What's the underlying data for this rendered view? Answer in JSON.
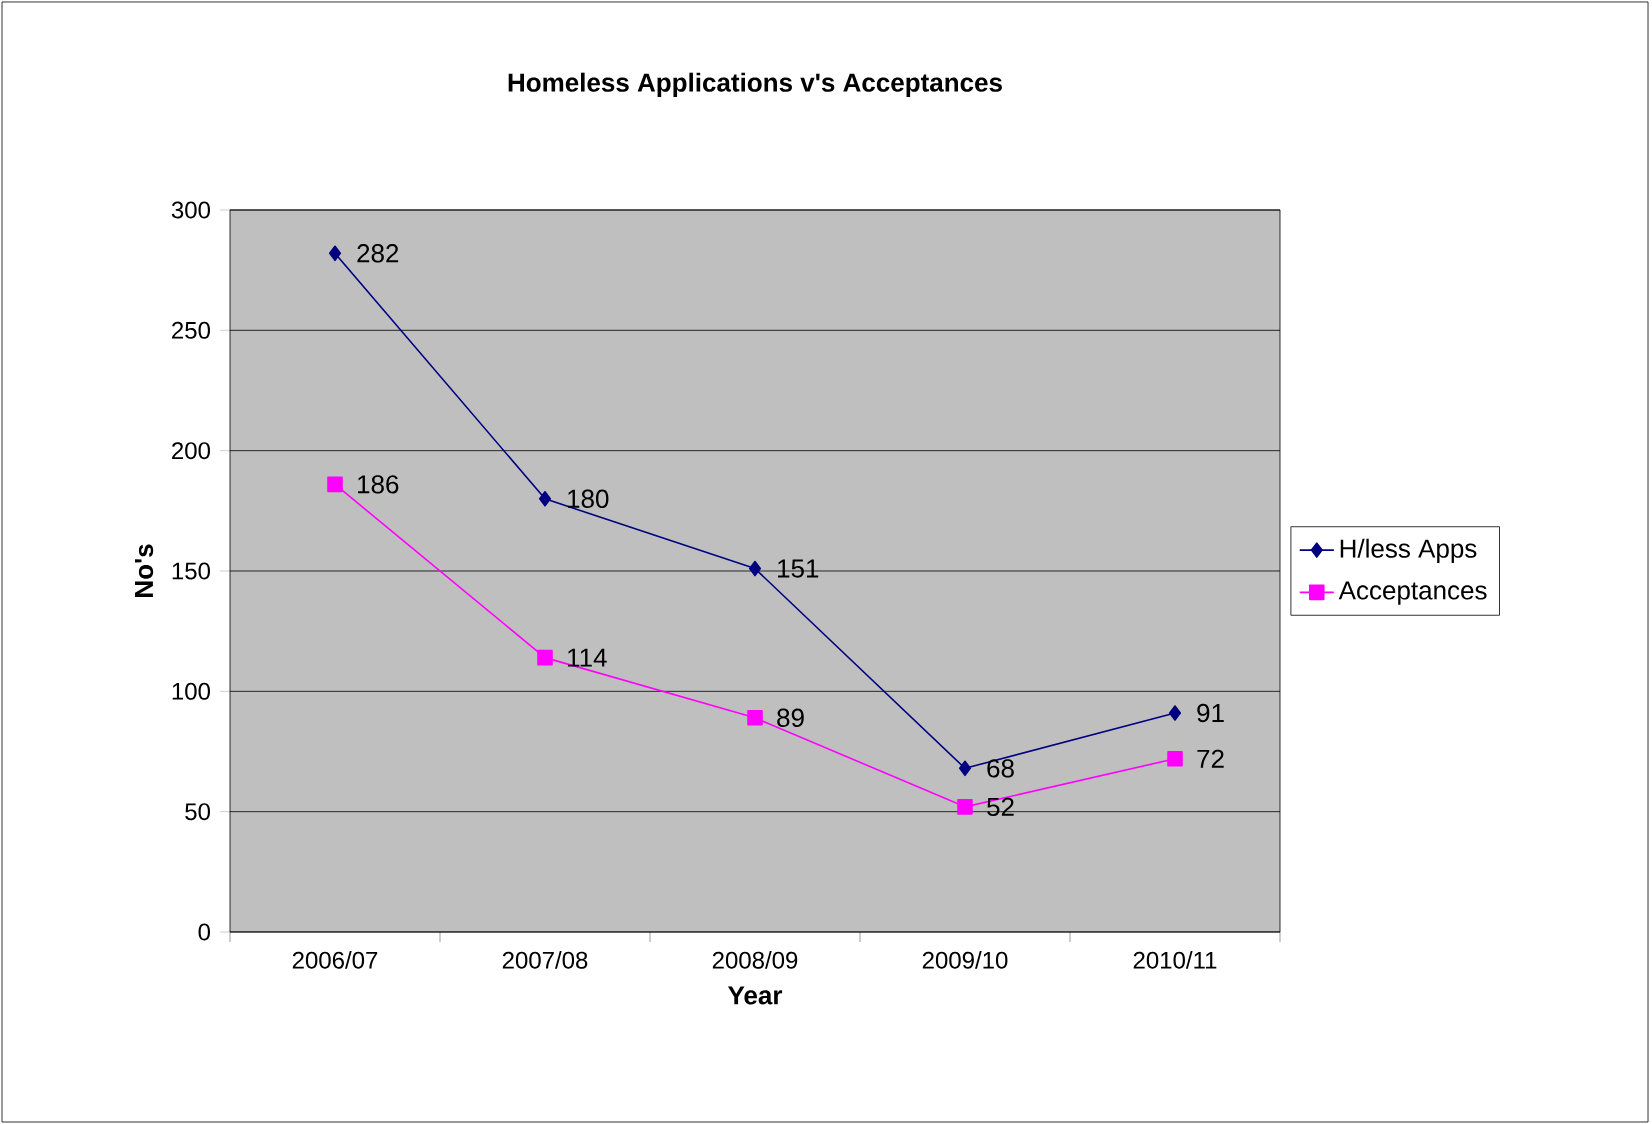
{
  "chart_data": {
    "type": "line",
    "title": "Homeless Applications v's Acceptances",
    "xlabel": "Year",
    "ylabel": "No's",
    "categories": [
      "2006/07",
      "2007/08",
      "2008/09",
      "2009/10",
      "2010/11"
    ],
    "series": [
      {
        "name": "H/less Apps",
        "color": "#000080",
        "marker": "diamond",
        "values": [
          282,
          180,
          151,
          68,
          91
        ]
      },
      {
        "name": "Acceptances",
        "color": "#ff00ff",
        "marker": "square",
        "values": [
          186,
          114,
          89,
          52,
          72
        ]
      }
    ],
    "ylim": [
      0,
      300
    ],
    "yticks": [
      0,
      50,
      100,
      150,
      200,
      250,
      300
    ],
    "grid": "y",
    "legend": "right",
    "data_labels": true
  }
}
